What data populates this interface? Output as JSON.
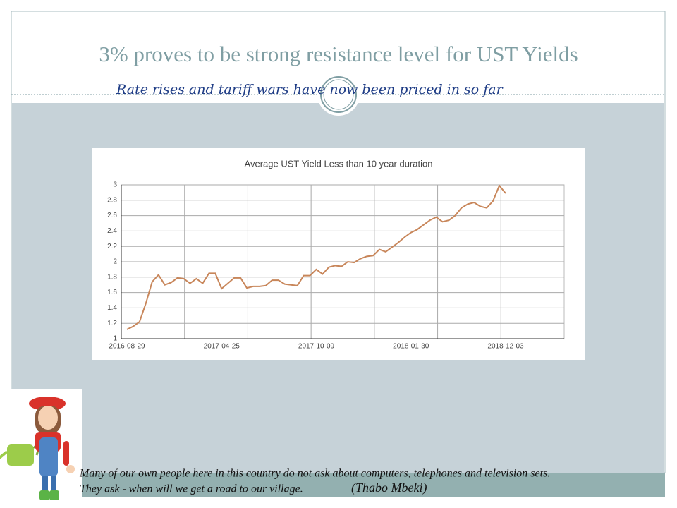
{
  "slide": {
    "title": "3% proves to be strong resistance level for UST Yields",
    "subtitle": "Rate rises and tariff wars have now been priced in so far",
    "quote": [
      "Many of our own people here in this country do not ask about computers, telephones and television sets.",
      "They ask - when will we get a road to our village."
    ],
    "author": "(Thabo Mbeki)"
  },
  "chart_data": {
    "type": "line",
    "title": "Average UST Yield Less than 10 year duration",
    "color": "#c8865a",
    "grid": true,
    "ylim": [
      1,
      3
    ],
    "yticks": [
      1,
      1.2,
      1.4,
      1.6,
      1.8,
      2,
      2.2,
      2.4,
      2.6,
      2.8,
      3
    ],
    "categories": [
      "2016-08-29",
      null,
      null,
      null,
      null,
      null,
      null,
      null,
      null,
      null,
      null,
      null,
      null,
      null,
      null,
      "2017-04-25",
      null,
      null,
      null,
      null,
      null,
      null,
      null,
      null,
      null,
      null,
      null,
      null,
      null,
      null,
      "2017-10-09",
      null,
      null,
      null,
      null,
      null,
      null,
      null,
      null,
      null,
      null,
      null,
      null,
      null,
      null,
      "2018-01-30",
      null,
      null,
      null,
      null,
      null,
      null,
      null,
      null,
      null,
      null,
      null,
      null,
      null,
      null,
      "2018-12-03"
    ],
    "values": [
      1.12,
      1.16,
      1.22,
      1.46,
      1.74,
      1.83,
      1.7,
      1.73,
      1.79,
      1.78,
      1.72,
      1.78,
      1.72,
      1.85,
      1.85,
      1.65,
      1.72,
      1.79,
      1.79,
      1.66,
      1.68,
      1.68,
      1.69,
      1.76,
      1.76,
      1.71,
      1.7,
      1.69,
      1.82,
      1.82,
      1.9,
      1.84,
      1.93,
      1.95,
      1.94,
      2,
      1.99,
      2.04,
      2.07,
      2.08,
      2.16,
      2.13,
      2.19,
      2.25,
      2.32,
      2.38,
      2.42,
      2.48,
      2.54,
      2.58,
      2.52,
      2.54,
      2.6,
      2.7,
      2.75,
      2.77,
      2.72,
      2.7,
      2.79,
      2.99,
      2.89
    ]
  }
}
